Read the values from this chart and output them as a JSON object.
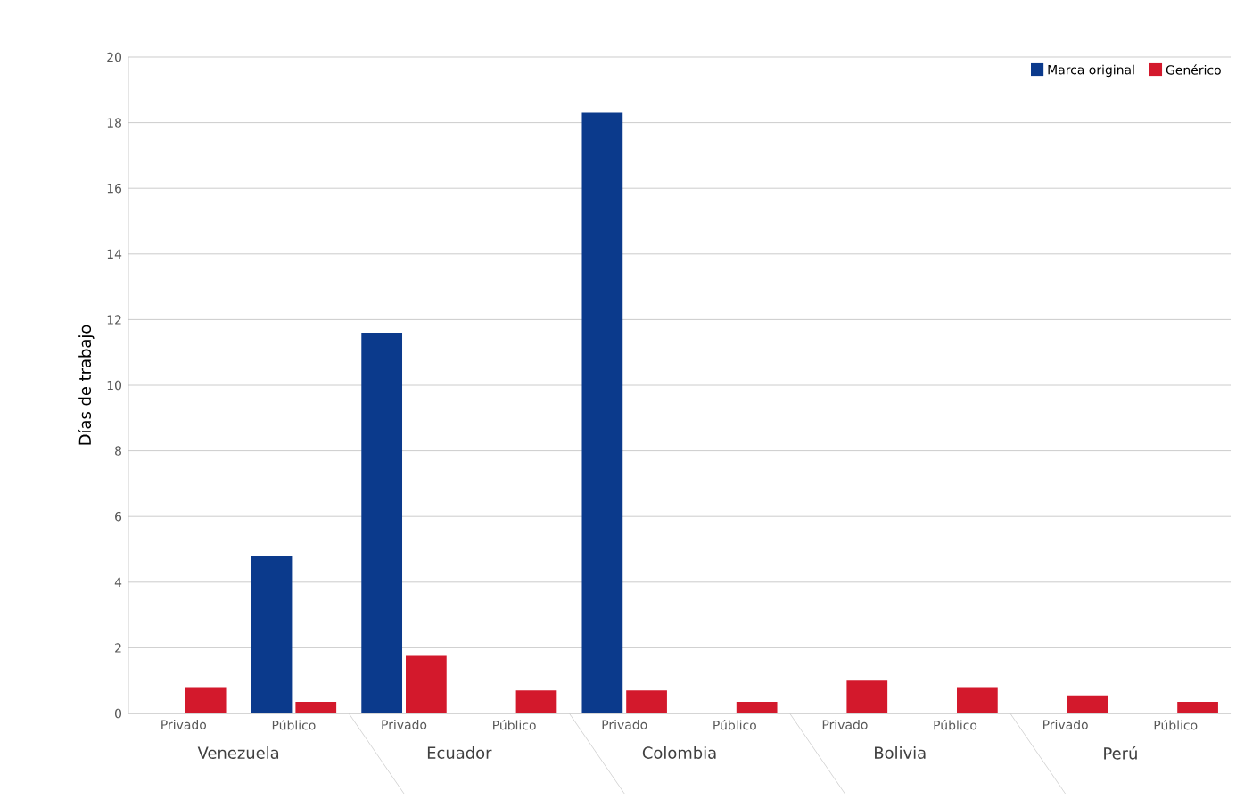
{
  "chart_data": {
    "type": "bar",
    "ylabel": "Días de trabajo",
    "categories": [
      "Privado",
      "Público",
      "Privado",
      "Público",
      "Privado",
      "Público",
      "Privado",
      "Público",
      "Privado",
      "Público"
    ],
    "series": [
      {
        "name": "Marca original",
        "color": "#0b3a8c",
        "values": [
          0,
          4.8,
          11.6,
          0,
          18.3,
          0,
          0,
          0,
          0,
          0
        ]
      },
      {
        "name": "Genérico",
        "color": "#d3192c",
        "values": [
          0.8,
          0.35,
          1.75,
          0.7,
          0.7,
          0.35,
          1.0,
          0.8,
          0.55,
          0.35
        ]
      }
    ],
    "annotations": [
      "Venezuela",
      "Ecuador",
      "Colombia",
      "Bolivia",
      "Perú"
    ],
    "ylim": [
      0,
      20
    ],
    "yticks": [
      0,
      2,
      4,
      6,
      8,
      10,
      12,
      14,
      16,
      18,
      20
    ],
    "grid": "y",
    "legend": "top right"
  }
}
